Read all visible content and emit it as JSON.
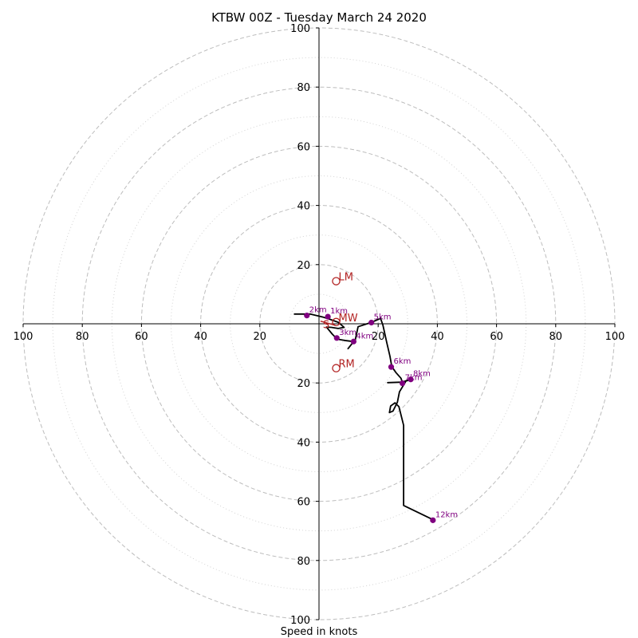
{
  "chart_data": {
    "type": "scatter",
    "title": "KTBW 00Z - Tuesday March 24 2020",
    "xlabel": "Speed in knots",
    "ylabel": "",
    "xlim": [
      -100,
      100
    ],
    "ylim": [
      -100,
      100
    ],
    "rings_major": [
      20,
      40,
      60,
      80,
      100
    ],
    "rings_minor": [
      10,
      30,
      50,
      70,
      90
    ],
    "tick_labels": [
      "100",
      "80",
      "60",
      "40",
      "20",
      "20",
      "40",
      "60",
      "80",
      "100"
    ],
    "x_tick_values": [
      -100,
      -80,
      -60,
      -40,
      -20,
      20,
      40,
      60,
      80,
      100
    ],
    "y_tick_values": [
      100,
      80,
      60,
      40,
      20,
      -20,
      -40,
      -60,
      -80,
      -100
    ],
    "hodograph": {
      "color": "#000000",
      "points": [
        [
          -8.5,
          3.3
        ],
        [
          -3,
          3.3
        ],
        [
          1.5,
          2.2
        ],
        [
          3.5,
          1.6
        ],
        [
          4.5,
          1.2
        ],
        [
          6.5,
          0.5
        ],
        [
          8.5,
          -1.2
        ],
        [
          6.5,
          -1.6
        ],
        [
          4.2,
          -1.2
        ],
        [
          2.5,
          -1.1
        ],
        [
          4.5,
          -3.5
        ],
        [
          5.5,
          -4.5
        ],
        [
          6.2,
          -5.2
        ],
        [
          8.5,
          -5.6
        ],
        [
          11.7,
          -6
        ],
        [
          9.8,
          -8.4
        ],
        [
          12.3,
          -5.3
        ],
        [
          13.2,
          -1
        ],
        [
          17.5,
          0.4
        ],
        [
          20.8,
          1.8
        ],
        [
          21.6,
          -0.4
        ],
        [
          22.9,
          -6.4
        ],
        [
          24,
          -11
        ],
        [
          24.6,
          -14.5
        ],
        [
          26,
          -16.5
        ],
        [
          27.7,
          -18.4
        ],
        [
          28.2,
          -19.8
        ],
        [
          31,
          -18.8
        ],
        [
          28,
          -19.7
        ],
        [
          23.2,
          -19.9
        ],
        [
          29.2,
          -19.7
        ],
        [
          27.2,
          -23
        ],
        [
          26.5,
          -26.5
        ],
        [
          25,
          -29.5
        ],
        [
          23.8,
          -30
        ],
        [
          24.2,
          -27.8
        ],
        [
          25.7,
          -26.7
        ],
        [
          27,
          -28
        ],
        [
          28.6,
          -34.3
        ],
        [
          28.6,
          -61.4
        ],
        [
          38.5,
          -66.2
        ]
      ]
    },
    "height_markers": {
      "color": "#800080",
      "items": [
        {
          "label": "1km",
          "u": 3,
          "v": 2.4
        },
        {
          "label": "2km",
          "u": -4.1,
          "v": 2.8
        },
        {
          "label": "3km",
          "u": 6,
          "v": -4.8
        },
        {
          "label": "4km",
          "u": 11.7,
          "v": -6
        },
        {
          "label": "5km",
          "u": 17.7,
          "v": 0.4
        },
        {
          "label": "6km",
          "u": 24.4,
          "v": -14.6
        },
        {
          "label": "7km",
          "u": 28.2,
          "v": -20.1
        },
        {
          "label": "8km",
          "u": 31,
          "v": -18.8
        },
        {
          "label": "12km",
          "u": 38.5,
          "v": -66.4
        }
      ]
    },
    "storm_motion": {
      "color": "#b22222",
      "items": [
        {
          "label": "LM",
          "u": 5.8,
          "v": 14.4
        },
        {
          "label": "RM",
          "u": 5.8,
          "v": -15
        },
        {
          "label": "MW",
          "u": 5.8,
          "v": 0.6
        }
      ],
      "shear_vector_label": "S",
      "shear_vector": [
        [
          0.5,
          0.9
        ],
        [
          5.5,
          -0.5
        ]
      ]
    }
  }
}
